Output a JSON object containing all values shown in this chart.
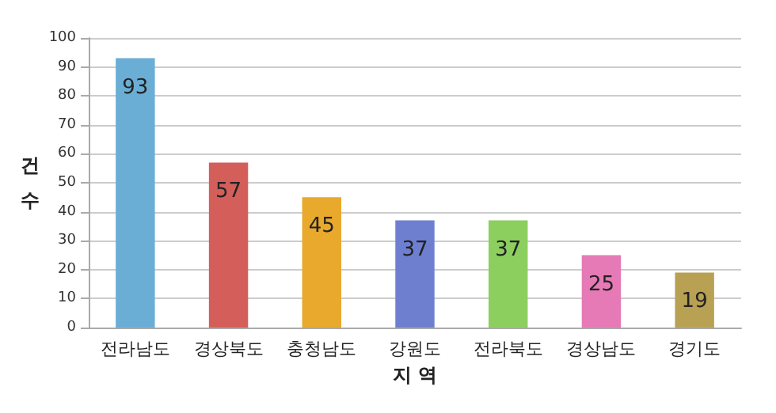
{
  "chart_data": {
    "type": "bar",
    "xlabel": "지 역",
    "ylabel": "건 수",
    "categories": [
      "전라남도",
      "경상북도",
      "충청남도",
      "강원도",
      "전라북도",
      "경상남도",
      "경기도"
    ],
    "values": [
      93,
      57,
      45,
      37,
      37,
      25,
      19
    ],
    "colors": [
      "#6aaed6",
      "#d45f5a",
      "#e8a92c",
      "#6f7fd0",
      "#8ccf5e",
      "#e57ab6",
      "#b8a152"
    ],
    "ylim": [
      0,
      100
    ],
    "yticks": [
      0,
      10,
      20,
      30,
      40,
      50,
      60,
      70,
      80,
      90,
      100
    ],
    "grid": "y",
    "data_labels": true
  }
}
